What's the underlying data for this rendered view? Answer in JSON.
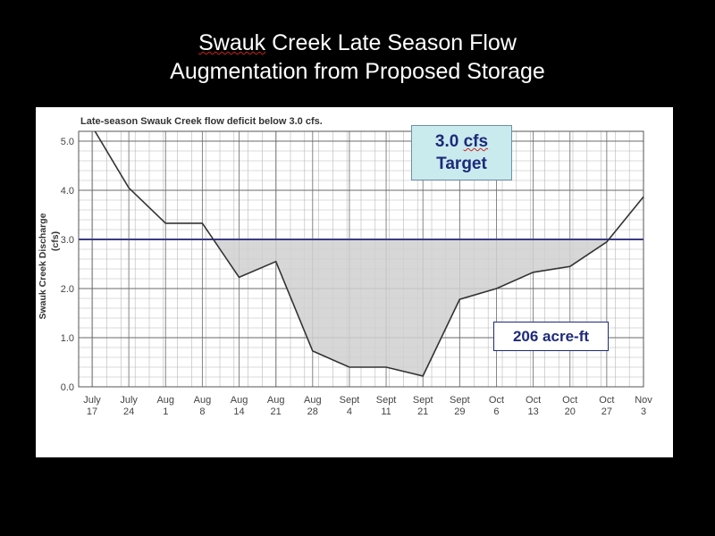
{
  "slide": {
    "title_line1": "Swauk Creek Late Season Flow",
    "title_line2": "Augmentation from Proposed Storage"
  },
  "callouts": {
    "target_value": "3.0 cfs",
    "target_label": "Target",
    "volume": "206 acre-ft"
  },
  "colors": {
    "background": "#000000",
    "line": "#333333",
    "fill": "#d0d0d0",
    "target_line": "#3b3b8a",
    "callout_text": "#1e2a7a",
    "callout_fill": "#c9ebee"
  },
  "chart_data": {
    "type": "area",
    "title": "Late-season Swauk Creek flow deficit below 3.0 cfs.",
    "xlabel": "",
    "ylabel": "Swauk Creek Discharge",
    "ylabel_unit": "(cfs)",
    "categories": [
      [
        "July",
        "17"
      ],
      [
        "July",
        "24"
      ],
      [
        "Aug",
        "1"
      ],
      [
        "Aug",
        "8"
      ],
      [
        "Aug",
        "14"
      ],
      [
        "Aug",
        "21"
      ],
      [
        "Aug",
        "28"
      ],
      [
        "Sept",
        "4"
      ],
      [
        "Sept",
        "11"
      ],
      [
        "Sept",
        "21"
      ],
      [
        "Sept",
        "29"
      ],
      [
        "Oct",
        "6"
      ],
      [
        "Oct",
        "13"
      ],
      [
        "Oct",
        "20"
      ],
      [
        "Oct",
        "27"
      ],
      [
        "Nov",
        "3"
      ]
    ],
    "series": [
      {
        "values": [
          5.3,
          4.05,
          3.33,
          3.33,
          2.23,
          2.55,
          0.73,
          0.4,
          0.4,
          0.22,
          1.78,
          2.0,
          2.33,
          2.45,
          2.95,
          3.87
        ]
      }
    ],
    "target": 3.0,
    "ylim": [
      0,
      5.2
    ],
    "yticks": [
      "0.0",
      "1.0",
      "2.0",
      "3.0",
      "4.0",
      "5.0"
    ],
    "shaded_region": "deficit below 3.0",
    "grid": true
  }
}
